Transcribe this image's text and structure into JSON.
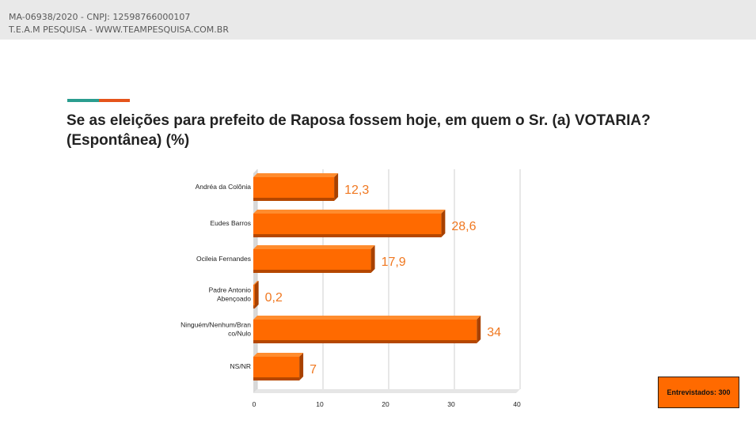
{
  "header": {
    "line1": "MA-06938/2020  - CNPJ: 12598766000107",
    "line2": "T.E.A.M PESQUISA  - WWW.TEAMPESQUISA.COM.BR"
  },
  "question": "Se as eleições para prefeito de Raposa fossem hoje, em quem o Sr. (a) VOTARIA? (Espontânea) (%)",
  "badge": "Entrevistados: 300",
  "colors": {
    "bar_front": "#ff6a00",
    "bar_top": "#ff8c2e",
    "bar_side": "#a84100",
    "value_label": "#f07820",
    "accent_teal": "#2a9d8f",
    "accent_orange": "#e5541b"
  },
  "chart_data": {
    "type": "bar",
    "orientation": "horizontal",
    "categories": [
      [
        "Andréa da Colônia"
      ],
      [
        "Eudes Barros"
      ],
      [
        "Ocileia Fernandes"
      ],
      [
        "Padre Antonio",
        "Abençoado"
      ],
      [
        "Ninguém/Nenhum/Bran",
        "co/Nulo"
      ],
      [
        "NS/NR"
      ]
    ],
    "values": [
      12.3,
      28.6,
      17.9,
      0.2,
      34,
      7
    ],
    "value_labels": [
      "12,3",
      "28,6",
      "17,9",
      "0,2",
      "34",
      "7"
    ],
    "xlim": [
      0,
      40
    ],
    "xticks": [
      0,
      10,
      20,
      30,
      40
    ],
    "grid": true,
    "style": "3d"
  }
}
